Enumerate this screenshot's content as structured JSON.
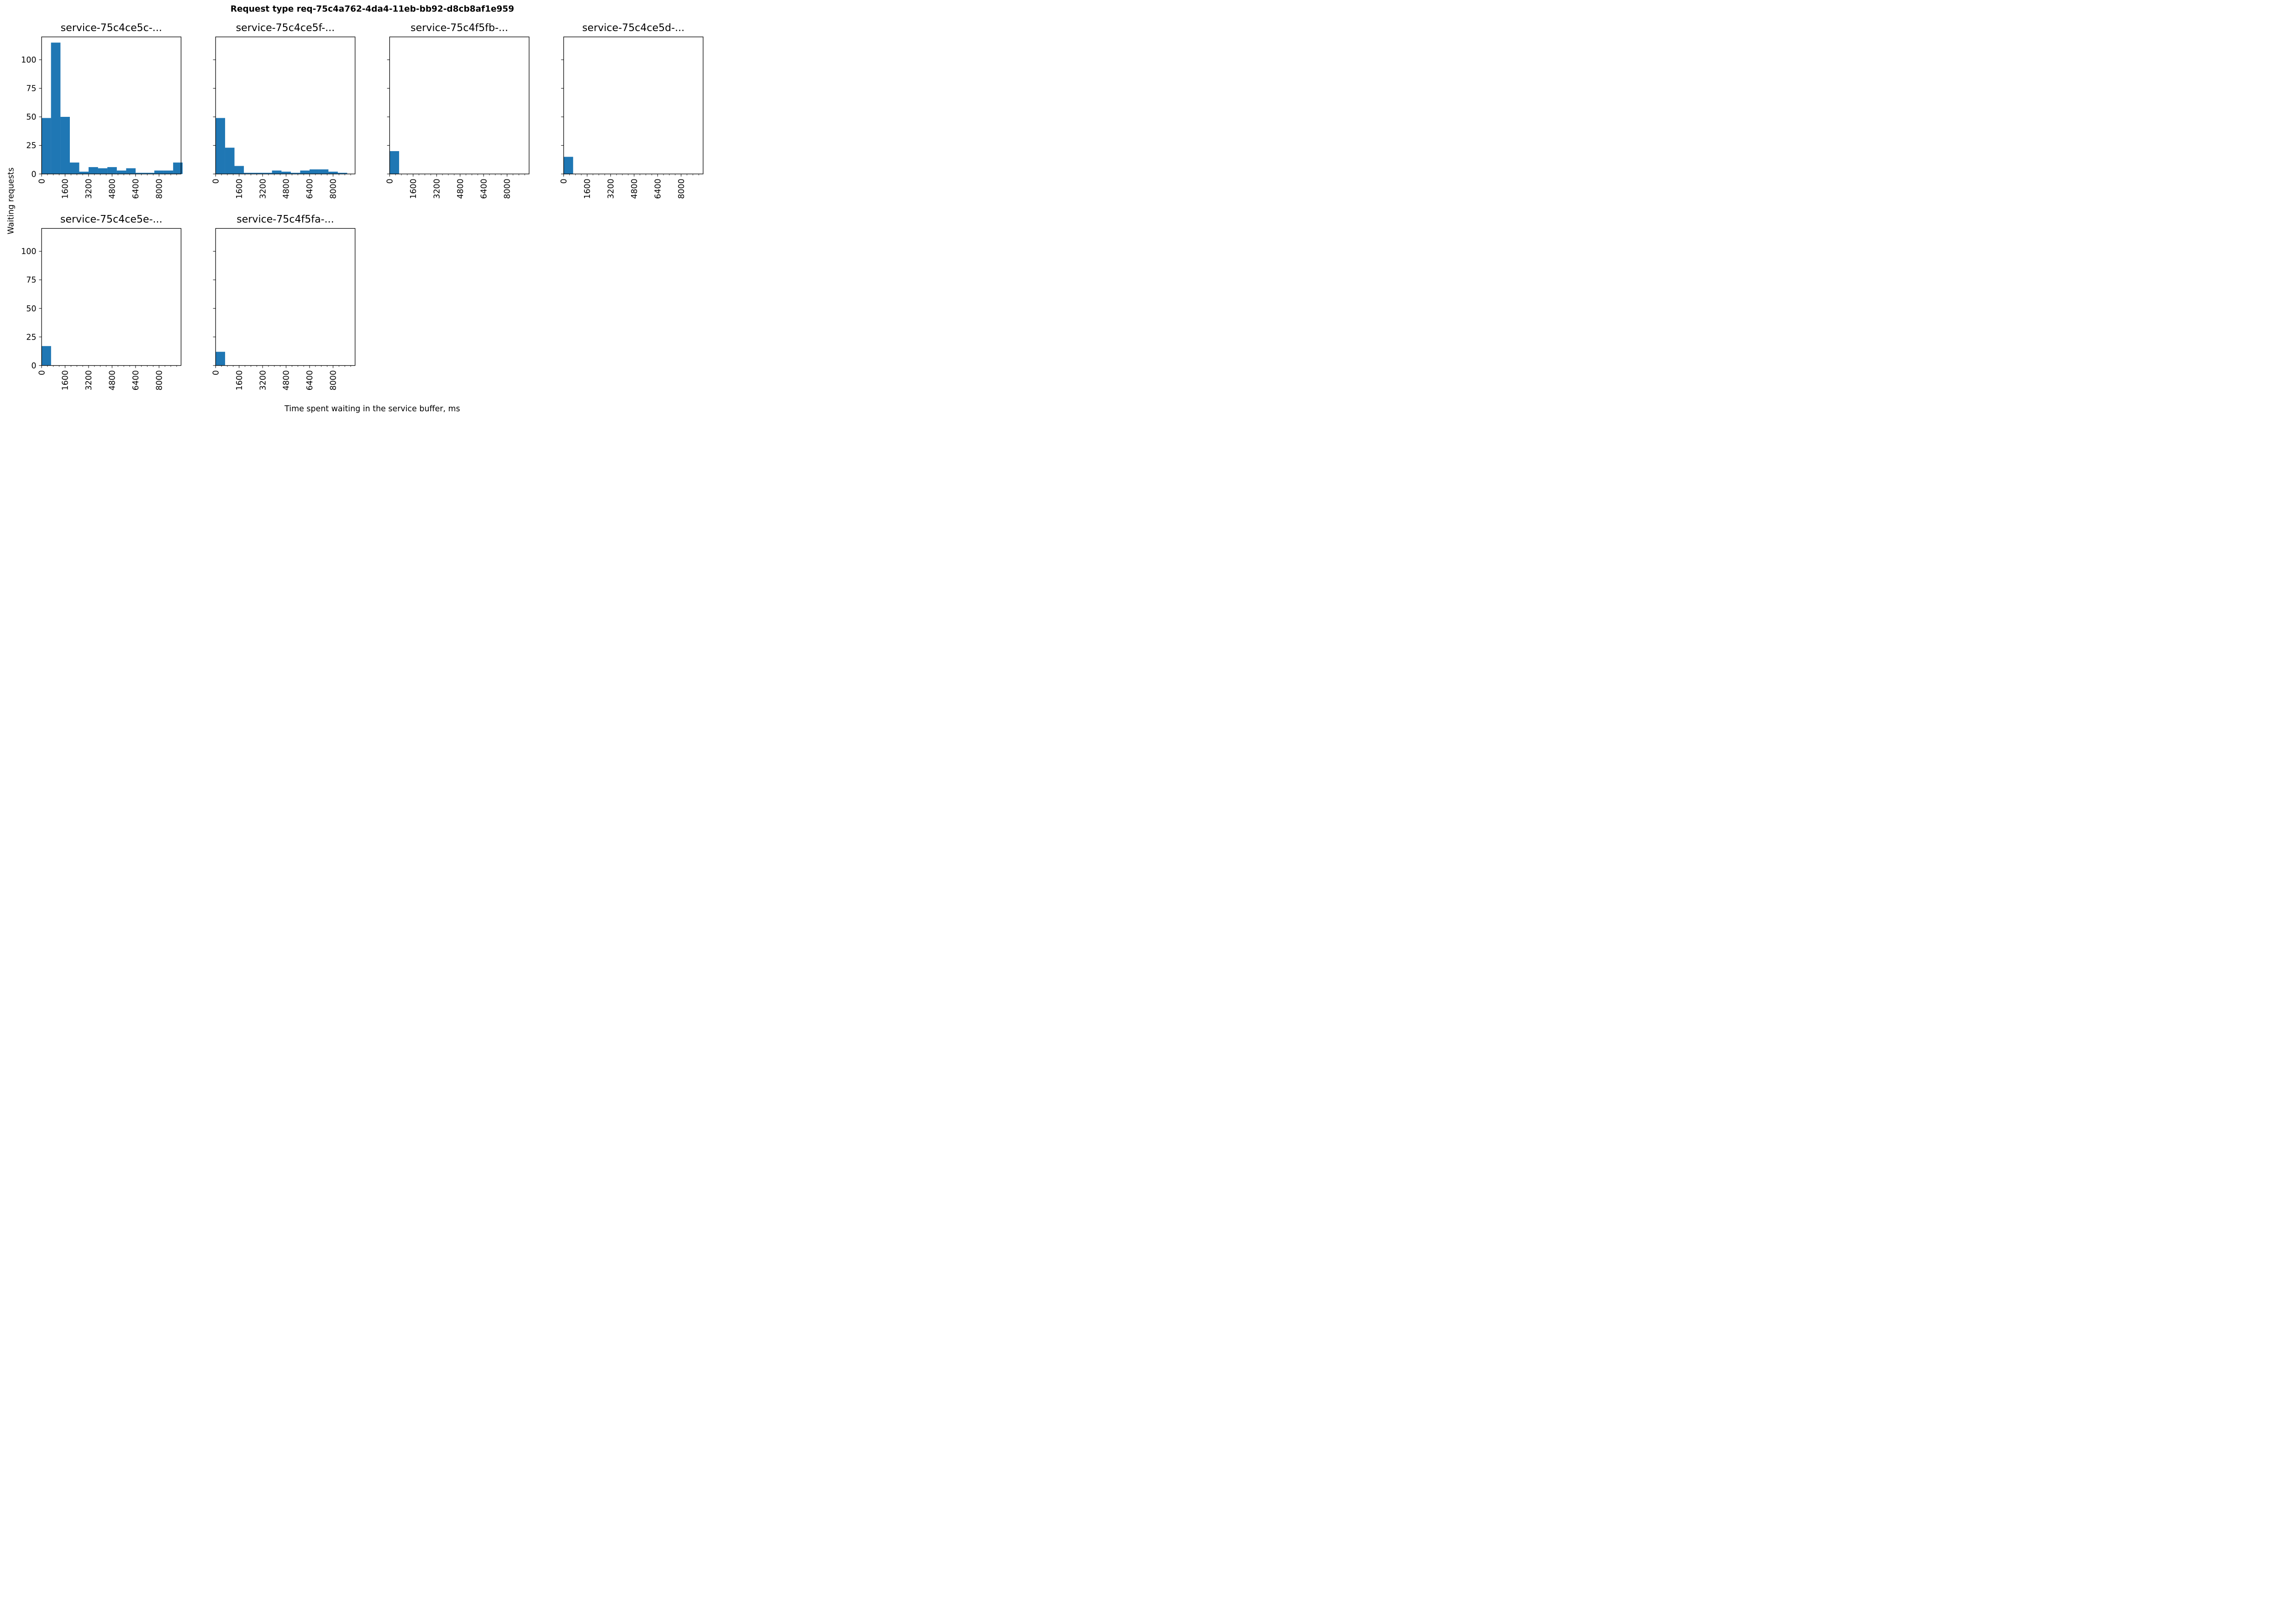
{
  "chart_data": {
    "type": "bar",
    "title": "Request type req-75c4a762-4da4-11eb-bb92-d8cb8af1e959",
    "xlabel": "Time spent waiting in the service buffer, ms",
    "ylabel": "Waiting requests",
    "bin_width": 640,
    "xlim": [
      0,
      9500
    ],
    "ylim": [
      0,
      120
    ],
    "xticks": [
      0,
      1600,
      3200,
      4800,
      6400,
      8000
    ],
    "yticks": [
      0,
      25,
      50,
      75,
      100
    ],
    "grid": false,
    "bar_color": "#1f77b4",
    "panels": [
      {
        "name": "service-75c4ce5c-...",
        "counts": [
          49,
          115,
          50,
          10,
          2,
          6,
          5,
          6,
          3,
          5,
          1,
          1,
          3,
          3,
          10
        ]
      },
      {
        "name": "service-75c4ce5f-...",
        "counts": [
          49,
          23,
          7,
          1,
          1,
          1,
          3,
          2,
          1,
          3,
          4,
          4,
          2,
          1
        ]
      },
      {
        "name": "service-75c4f5fb-...",
        "counts": [
          20
        ]
      },
      {
        "name": "service-75c4ce5d-...",
        "counts": [
          15
        ]
      },
      {
        "name": "service-75c4ce5e-...",
        "counts": [
          17
        ]
      },
      {
        "name": "service-75c4f5fa-...",
        "counts": [
          12
        ]
      }
    ]
  }
}
